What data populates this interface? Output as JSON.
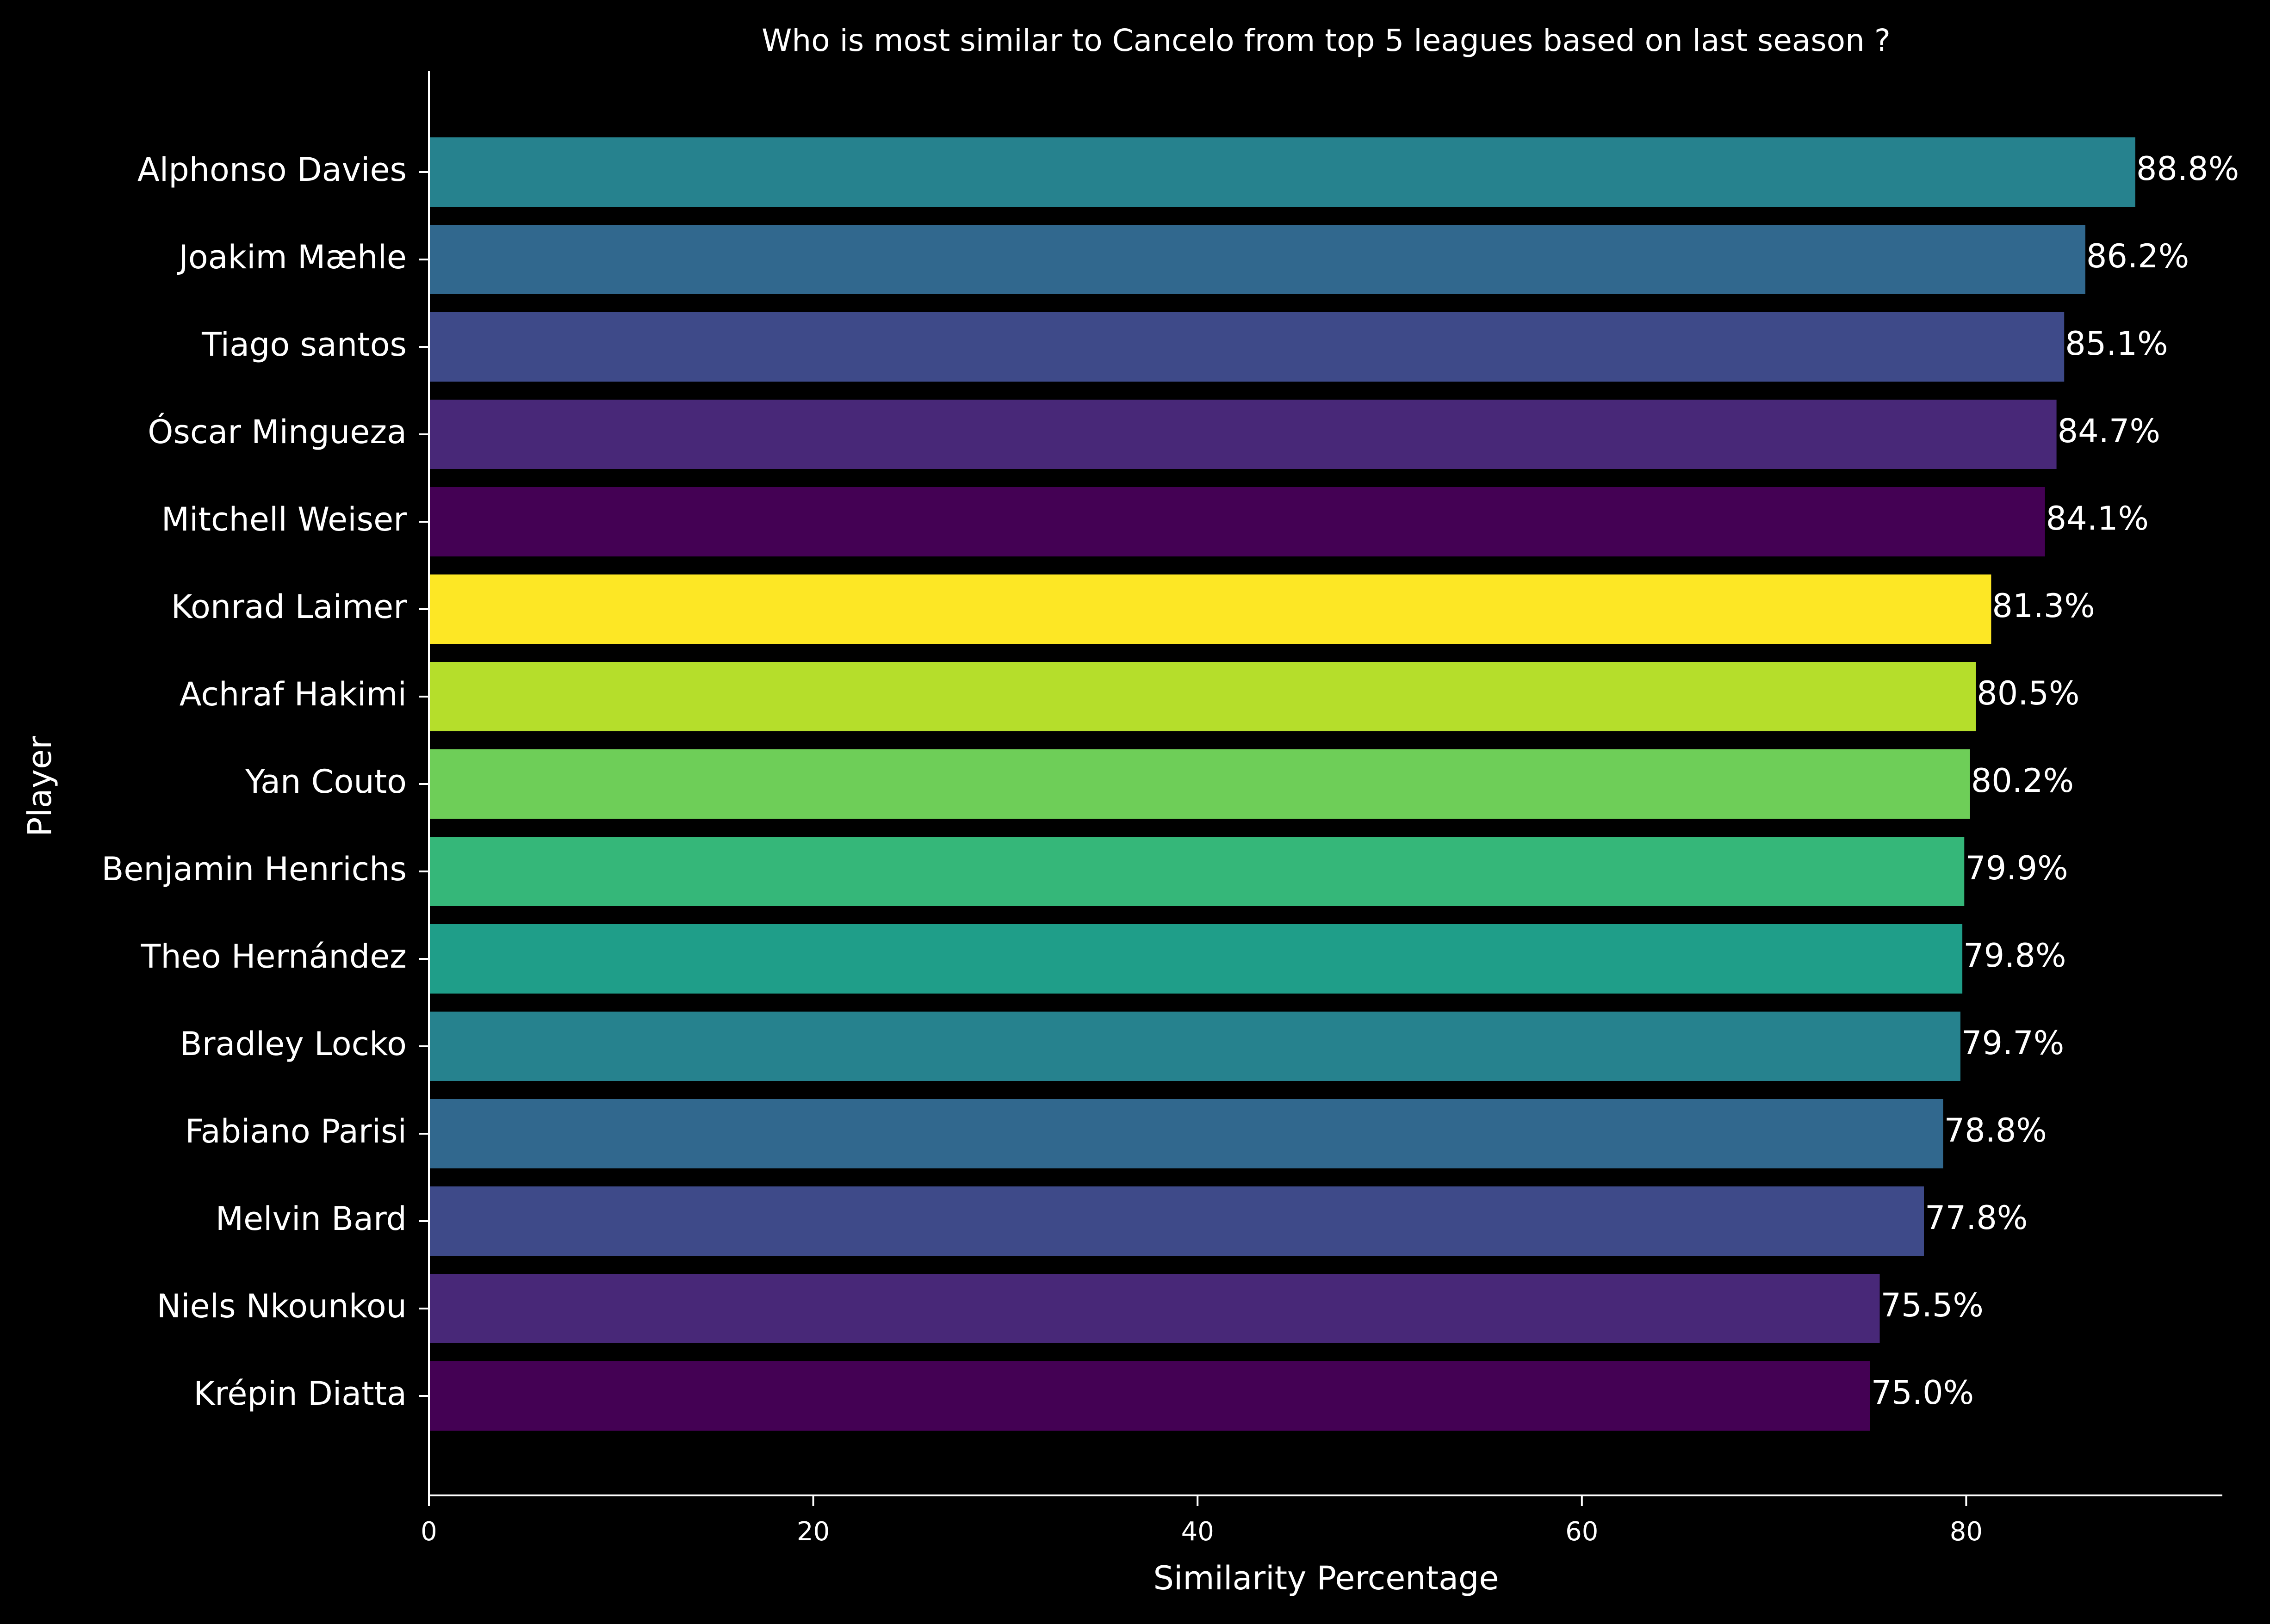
{
  "chart_data": {
    "type": "bar",
    "orientation": "horizontal",
    "title": "Who is most similar to Cancelo from top 5 leagues based on last season ?",
    "xlabel": "Similarity Percentage",
    "ylabel": "Player",
    "xlim": [
      0,
      93.3
    ],
    "xticks": [
      "0",
      "20",
      "40",
      "60",
      "80"
    ],
    "grid": false,
    "legend": false,
    "categories": [
      "Alphonso Davies",
      "Joakim Mæhle",
      "Tiago santos",
      "Óscar Mingueza",
      "Mitchell Weiser",
      "Konrad Laimer",
      "Achraf Hakimi",
      "Yan Couto",
      "Benjamin Henrichs",
      "Theo Hernández",
      "Bradley Locko",
      "Fabiano Parisi",
      "Melvin Bard",
      "Niels Nkounkou",
      "Krépin Diatta"
    ],
    "values": [
      88.8,
      86.2,
      85.1,
      84.7,
      84.1,
      81.3,
      80.5,
      80.2,
      79.9,
      79.8,
      79.7,
      78.8,
      77.8,
      75.5,
      75.0
    ],
    "data_labels": [
      "88.8%",
      "86.2%",
      "85.1%",
      "84.7%",
      "84.1%",
      "81.3%",
      "80.5%",
      "80.2%",
      "79.9%",
      "79.8%",
      "79.7%",
      "78.8%",
      "77.8%",
      "75.5%",
      "75.0%"
    ],
    "colors": [
      "#26828e",
      "#31688e",
      "#3e4a89",
      "#482878",
      "#440154",
      "#fde725",
      "#b5de2b",
      "#6ece58",
      "#35b779",
      "#1f9e89",
      "#26828e",
      "#31688e",
      "#3e4a89",
      "#482878",
      "#440154"
    ],
    "background": "#000000",
    "text_color": "#ffffff"
  }
}
